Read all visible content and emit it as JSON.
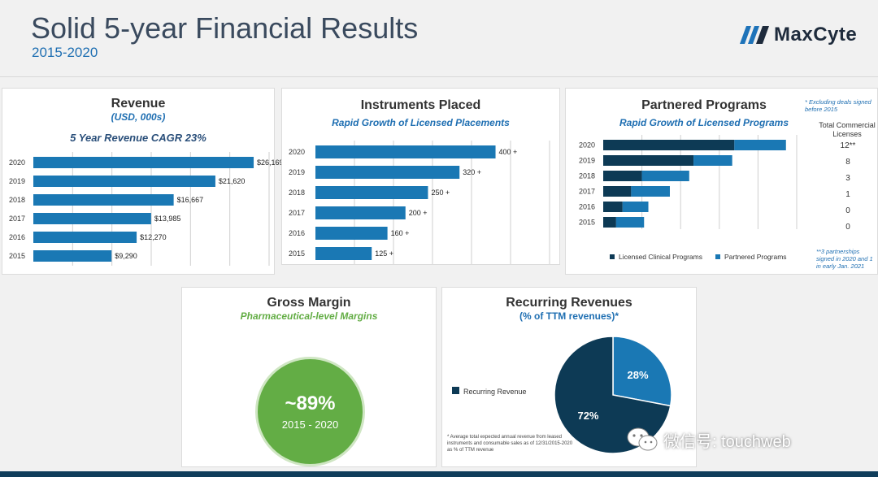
{
  "header": {
    "title": "Solid 5-year Financial Results",
    "subtitle": "2015-2020",
    "logo_text": "MaxCyte"
  },
  "watermark": {
    "text": "微信号: touchweb"
  },
  "colors": {
    "blue": "#1a78b4",
    "navy": "#0d3a55",
    "green": "#63ad45",
    "accent_text": "#1f6fb2"
  },
  "chart_data": [
    {
      "type": "bar",
      "orientation": "horizontal",
      "title": "Revenue",
      "subtitle": "(USD, 000s)",
      "annotation": "5 Year Revenue CAGR 23%",
      "categories": [
        "2020",
        "2019",
        "2018",
        "2017",
        "2016",
        "2015"
      ],
      "values": [
        26169,
        21620,
        16667,
        13985,
        12270,
        9290
      ],
      "value_labels": [
        "$26,169",
        "$21,620",
        "$16,667",
        "$13,985",
        "$12,270",
        "$9,290"
      ],
      "xlim": [
        0,
        28000
      ],
      "grid": true
    },
    {
      "type": "bar",
      "orientation": "horizontal",
      "title": "Instruments Placed",
      "annotation": "Rapid Growth of Licensed Placements",
      "categories": [
        "2020",
        "2019",
        "2018",
        "2017",
        "2016",
        "2015"
      ],
      "values": [
        400,
        320,
        250,
        200,
        160,
        125
      ],
      "value_labels": [
        "400 +",
        "320 +",
        "250 +",
        "200 +",
        "160 +",
        "125 +"
      ],
      "xlim": [
        0,
        520
      ],
      "grid": true
    },
    {
      "type": "bar",
      "orientation": "horizontal",
      "stacked": true,
      "title": "Partnered Programs",
      "annotation": "Rapid Growth of Licensed Programs",
      "categories": [
        "2020",
        "2019",
        "2018",
        "2017",
        "2016",
        "2015"
      ],
      "series": [
        {
          "name": "Licensed Clinical Programs",
          "values": [
            61,
            42,
            18,
            13,
            9,
            6
          ]
        },
        {
          "name": "Partnered Programs",
          "values": [
            24,
            18,
            22,
            18,
            12,
            13
          ]
        }
      ],
      "xlim": [
        0,
        90
      ],
      "legend": "bottom",
      "grid": true,
      "licenses_header": "Total Commercial Licenses",
      "licenses": [
        "12**",
        "8",
        "3",
        "1",
        "0",
        "0"
      ],
      "note_top": "* Excluding deals signed before 2015",
      "note_bottom": "**3 partnerships signed in 2020 and 1 in early Jan. 2021"
    },
    {
      "type": "pie",
      "title": "Recurring Revenues",
      "subtitle": "(% of TTM revenues)*",
      "slices": [
        {
          "label": "28%",
          "value": 28,
          "color": "#1a78b4"
        },
        {
          "label": "72%",
          "value": 72,
          "color": "#0d3a55"
        }
      ],
      "legend": [
        {
          "name": "Recurring Revenue",
          "color": "#0d3a55"
        }
      ],
      "footnote": "* Average total expected annual revenue from leased instruments and consumable sales as of 12/31/2015-2020 as % of TTM revenue"
    }
  ],
  "gross_margin": {
    "title": "Gross Margin",
    "subtitle": "Pharmaceutical-level Margins",
    "value": "~89%",
    "period": "2015 - 2020"
  }
}
